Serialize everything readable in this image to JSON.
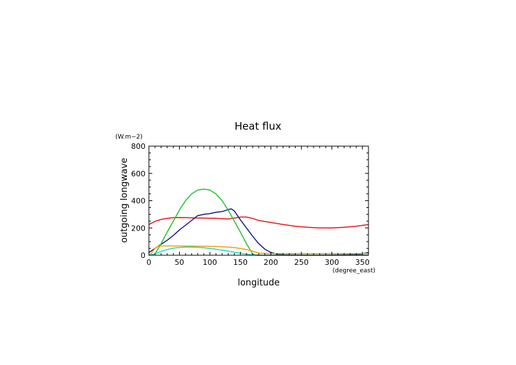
{
  "chart_data": {
    "type": "line",
    "title": "Heat flux",
    "xlabel": "longitude",
    "ylabel": "outgoing longwave",
    "x_unit": "(degree_east)",
    "y_unit": "(W.m−2)",
    "xlim": [
      0,
      360
    ],
    "ylim": [
      0,
      800
    ],
    "x_ticks": [
      0,
      50,
      100,
      150,
      200,
      250,
      300,
      350
    ],
    "y_ticks": [
      0,
      200,
      400,
      600,
      800
    ],
    "grid": false,
    "series": [
      {
        "color": "#e8161a",
        "x": [
          0,
          10,
          20,
          30,
          40,
          50,
          60,
          70,
          80,
          90,
          100,
          110,
          120,
          130,
          140,
          150,
          160,
          170,
          180,
          200,
          220,
          240,
          260,
          280,
          300,
          320,
          340,
          360
        ],
        "y": [
          225,
          248,
          262,
          270,
          275,
          276,
          275,
          274,
          273,
          272,
          271,
          270,
          268,
          266,
          272,
          280,
          280,
          270,
          255,
          240,
          225,
          213,
          205,
          200,
          200,
          205,
          213,
          225
        ]
      },
      {
        "color": "#1a1a8c",
        "x": [
          0,
          10,
          20,
          30,
          40,
          50,
          60,
          70,
          80,
          90,
          100,
          110,
          120,
          130,
          135,
          140,
          150,
          160,
          170,
          180,
          190,
          200,
          210,
          220,
          240,
          260,
          280,
          300,
          320,
          340,
          350,
          360
        ],
        "y": [
          20,
          50,
          80,
          110,
          145,
          185,
          220,
          255,
          290,
          300,
          305,
          315,
          320,
          335,
          340,
          325,
          260,
          200,
          140,
          85,
          45,
          20,
          8,
          3,
          2,
          1,
          1,
          2,
          3,
          5,
          10,
          20
        ]
      },
      {
        "color": "#22c42a",
        "x": [
          0,
          10,
          20,
          30,
          40,
          50,
          60,
          70,
          80,
          90,
          100,
          110,
          120,
          130,
          140,
          150,
          160,
          170,
          175,
          180,
          200,
          250,
          300,
          350,
          360
        ],
        "y": [
          0,
          10,
          85,
          170,
          250,
          330,
          400,
          450,
          478,
          485,
          478,
          450,
          400,
          330,
          250,
          170,
          85,
          10,
          0,
          0,
          0,
          0,
          0,
          0,
          0
        ]
      },
      {
        "color": "#f5a000",
        "x": [
          0,
          5,
          10,
          15,
          20,
          30,
          50,
          70,
          90,
          110,
          130,
          140,
          150,
          160,
          170,
          180,
          200,
          250,
          300,
          350,
          360
        ],
        "y": [
          0,
          20,
          50,
          65,
          68,
          68,
          68,
          67,
          66,
          64,
          60,
          56,
          50,
          42,
          30,
          15,
          12,
          12,
          12,
          12,
          12
        ]
      },
      {
        "color": "#1ed8d8",
        "x": [
          0,
          10,
          20,
          30,
          40,
          50,
          60,
          70,
          80,
          90,
          100,
          110,
          120,
          130,
          140,
          150,
          160,
          170,
          180,
          200,
          250,
          300,
          350,
          360
        ],
        "y": [
          0,
          10,
          28,
          42,
          52,
          57,
          60,
          60,
          58,
          55,
          50,
          44,
          37,
          30,
          22,
          15,
          8,
          3,
          0,
          0,
          0,
          0,
          0,
          0
        ]
      }
    ]
  }
}
